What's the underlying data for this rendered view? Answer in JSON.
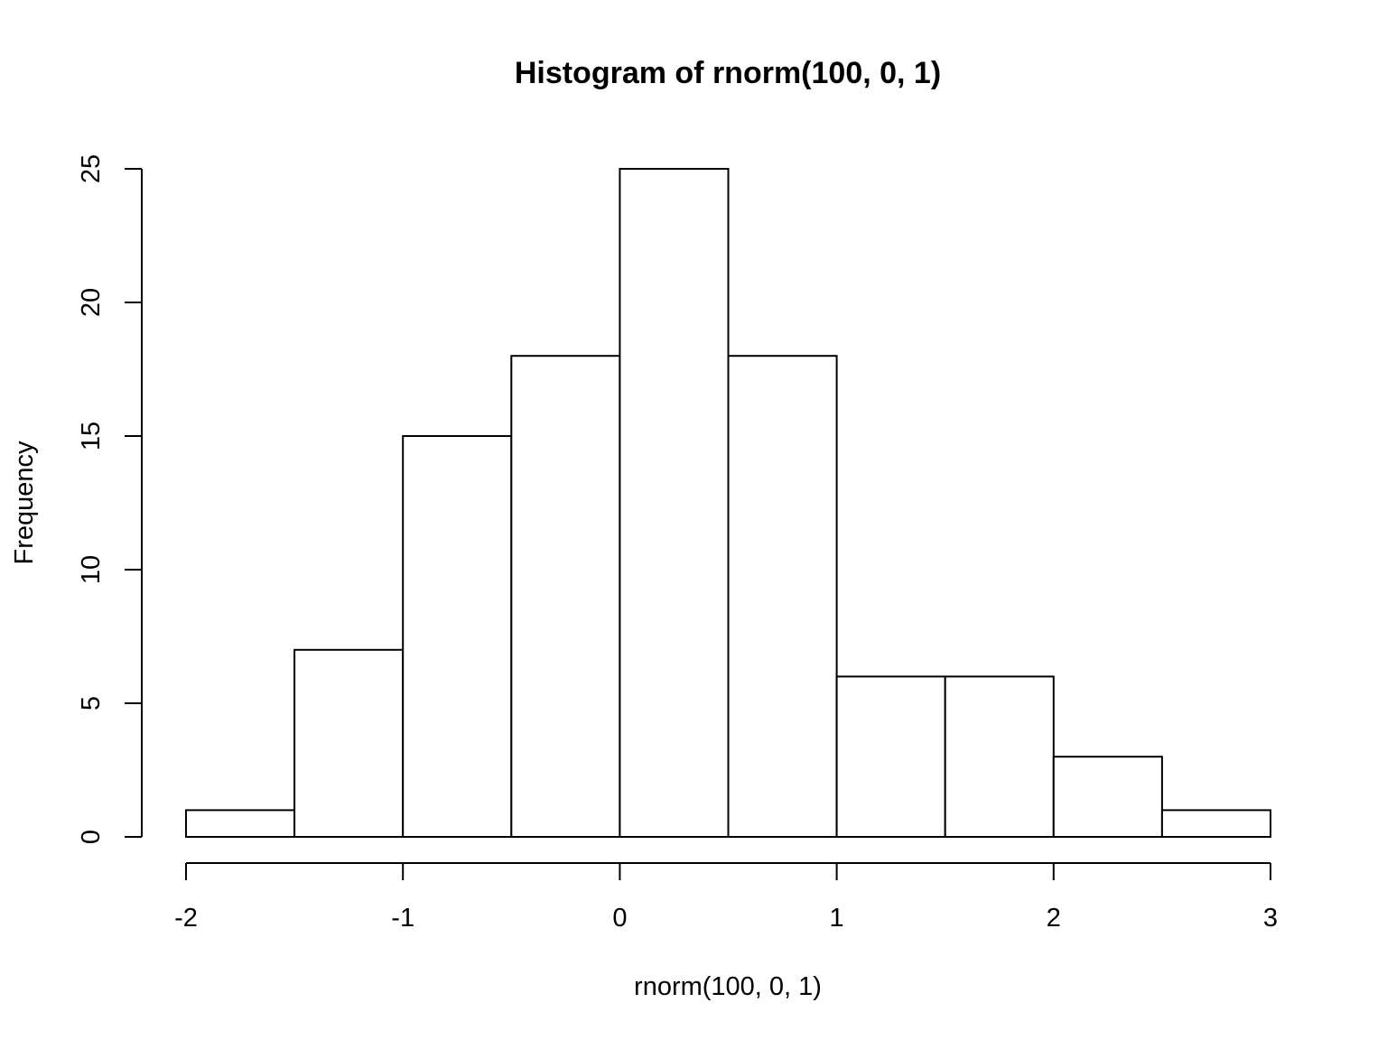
{
  "chart_data": {
    "type": "bar",
    "subtype": "histogram",
    "title": "Histogram of rnorm(100, 0, 1)",
    "xlabel": "rnorm(100, 0, 1)",
    "ylabel": "Frequency",
    "bin_edges": [
      -2,
      -1.5,
      -1,
      -0.5,
      0,
      0.5,
      1,
      1.5,
      2,
      2.5,
      3
    ],
    "values": [
      1,
      7,
      15,
      18,
      25,
      18,
      6,
      6,
      3,
      1
    ],
    "xlim": [
      -2,
      3
    ],
    "ylim": [
      0,
      25
    ],
    "x_ticks": [
      -2,
      -1,
      0,
      1,
      2,
      3
    ],
    "x_tick_labels": [
      "-2",
      "-1",
      "0",
      "1",
      "2",
      "3"
    ],
    "y_ticks": [
      0,
      5,
      10,
      15,
      20,
      25
    ],
    "y_tick_labels": [
      "0",
      "5",
      "10",
      "15",
      "20",
      "25"
    ],
    "grid": false,
    "legend": "none",
    "colors": {
      "bar_fill": "#ffffff",
      "bar_stroke": "#000000",
      "axis": "#000000",
      "background": "#ffffff"
    }
  }
}
